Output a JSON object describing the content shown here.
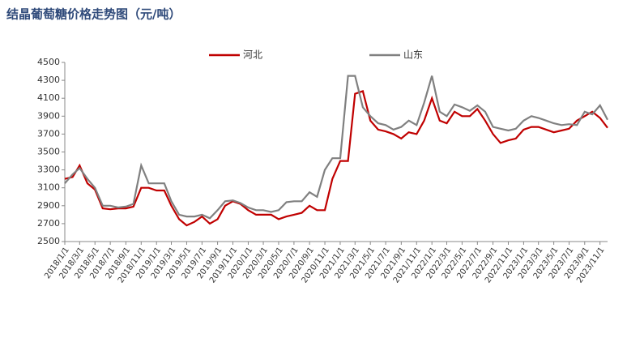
{
  "chart_data": {
    "type": "line",
    "title": "结晶葡萄糖价格走势图（元/吨）",
    "x": [
      "2018/1/1",
      "2018/2/1",
      "2018/3/1",
      "2018/4/1",
      "2018/5/1",
      "2018/6/1",
      "2018/7/1",
      "2018/8/1",
      "2018/9/1",
      "2018/10/1",
      "2018/11/1",
      "2018/12/1",
      "2019/1/1",
      "2019/2/1",
      "2019/3/1",
      "2019/4/1",
      "2019/5/1",
      "2019/6/1",
      "2019/7/1",
      "2019/8/1",
      "2019/9/1",
      "2019/10/1",
      "2019/11/1",
      "2019/12/1",
      "2020/1/1",
      "2020/2/1",
      "2020/3/1",
      "2020/4/1",
      "2020/5/1",
      "2020/6/1",
      "2020/7/1",
      "2020/8/1",
      "2020/9/1",
      "2020/10/1",
      "2020/11/1",
      "2020/12/1",
      "2021/1/1",
      "2021/2/1",
      "2021/3/1",
      "2021/4/1",
      "2021/5/1",
      "2021/6/1",
      "2021/7/1",
      "2021/8/1",
      "2021/9/1",
      "2021/10/1",
      "2021/11/1",
      "2021/12/1",
      "2022/1/1",
      "2022/2/1",
      "2022/3/1",
      "2022/4/1",
      "2022/5/1",
      "2022/6/1",
      "2022/7/1",
      "2022/8/1",
      "2022/9/1",
      "2022/10/1",
      "2022/11/1",
      "2022/12/1",
      "2023/1/1",
      "2023/2/1",
      "2023/3/1",
      "2023/4/1",
      "2023/5/1",
      "2023/6/1",
      "2023/7/1",
      "2023/8/1",
      "2023/9/1",
      "2023/10/1",
      "2023/11/1",
      "2023/12/1"
    ],
    "series": [
      {
        "name": "河北",
        "color": "#c00000",
        "values": [
          3200,
          3220,
          3350,
          3150,
          3080,
          2870,
          2860,
          2870,
          2870,
          2890,
          3100,
          3100,
          3070,
          3070,
          2900,
          2750,
          2680,
          2720,
          2780,
          2700,
          2750,
          2900,
          2950,
          2920,
          2850,
          2800,
          2800,
          2800,
          2750,
          2780,
          2800,
          2820,
          2900,
          2850,
          2850,
          3200,
          3400,
          3400,
          4150,
          4180,
          3850,
          3750,
          3730,
          3700,
          3650,
          3720,
          3700,
          3850,
          4100,
          3850,
          3820,
          3950,
          3900,
          3900,
          3980,
          3850,
          3700,
          3600,
          3630,
          3650,
          3750,
          3780,
          3780,
          3750,
          3720,
          3740,
          3760,
          3850,
          3900,
          3950,
          3880,
          3770
        ]
      },
      {
        "name": "山东",
        "color": "#808080",
        "values": [
          3150,
          3250,
          3320,
          3200,
          3100,
          2900,
          2900,
          2880,
          2890,
          2920,
          3350,
          3150,
          3150,
          3150,
          2950,
          2800,
          2780,
          2780,
          2800,
          2760,
          2850,
          2950,
          2960,
          2930,
          2880,
          2850,
          2850,
          2830,
          2850,
          2940,
          2950,
          2950,
          3050,
          3000,
          3300,
          3430,
          3430,
          4350,
          4350,
          4000,
          3900,
          3820,
          3800,
          3750,
          3780,
          3850,
          3800,
          4050,
          4350,
          3950,
          3900,
          4030,
          4000,
          3960,
          4020,
          3950,
          3780,
          3760,
          3740,
          3760,
          3850,
          3900,
          3880,
          3850,
          3820,
          3800,
          3810,
          3800,
          3950,
          3920,
          4020,
          3860
        ]
      }
    ],
    "xlim": [
      "2018/1/1",
      "2023/12/1"
    ],
    "xticks": [
      "2018/1/1",
      "2018/3/1",
      "2018/5/1",
      "2018/7/1",
      "2018/9/1",
      "2018/11/1",
      "2019/1/1",
      "2019/3/1",
      "2019/5/1",
      "2019/7/1",
      "2019/9/1",
      "2019/11/1",
      "2020/1/1",
      "2020/3/1",
      "2020/5/1",
      "2020/7/1",
      "2020/9/1",
      "2020/11/1",
      "2021/1/1",
      "2021/3/1",
      "2021/5/1",
      "2021/7/1",
      "2021/9/1",
      "2021/11/1",
      "2022/1/1",
      "2022/3/1",
      "2022/5/1",
      "2022/7/1",
      "2022/9/1",
      "2022/11/1",
      "2023/1/1",
      "2023/3/1",
      "2023/5/1",
      "2023/7/1",
      "2023/9/1",
      "2023/11/1"
    ],
    "ylim": [
      2500,
      4500
    ],
    "yticks": [
      2500,
      2700,
      2900,
      3100,
      3300,
      3500,
      3700,
      3900,
      4100,
      4300,
      4500
    ]
  }
}
